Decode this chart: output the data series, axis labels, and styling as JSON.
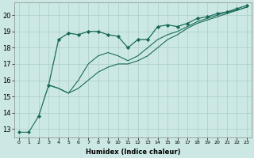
{
  "xlabel": "Humidex (Indice chaleur)",
  "xlim": [
    -0.5,
    23.5
  ],
  "ylim": [
    12.5,
    20.8
  ],
  "yticks": [
    13,
    14,
    15,
    16,
    17,
    18,
    19,
    20
  ],
  "xticks": [
    0,
    1,
    2,
    3,
    4,
    5,
    6,
    7,
    8,
    9,
    10,
    11,
    12,
    13,
    14,
    15,
    16,
    17,
    18,
    19,
    20,
    21,
    22,
    23
  ],
  "bg_color": "#cce8e4",
  "grid_color": "#aaccca",
  "line_color": "#1a6b5a",
  "line1_x": [
    0,
    1,
    2,
    3,
    4,
    5,
    6,
    7,
    8,
    9,
    10,
    11,
    12,
    13,
    14,
    15,
    16,
    17,
    18,
    19,
    20,
    21,
    22,
    23
  ],
  "line1_y": [
    12.8,
    12.8,
    13.8,
    15.7,
    18.5,
    18.9,
    18.8,
    19.0,
    19.0,
    18.8,
    18.7,
    18.0,
    18.5,
    18.5,
    19.3,
    19.4,
    19.3,
    19.5,
    19.8,
    19.9,
    20.1,
    20.2,
    20.4,
    20.6
  ],
  "line2_x": [
    3,
    4,
    5,
    6,
    7,
    8,
    9,
    10,
    11,
    12,
    13,
    14,
    15,
    16,
    17,
    18,
    19,
    20,
    21,
    22,
    23
  ],
  "line2_y": [
    15.7,
    15.5,
    15.2,
    16.0,
    17.0,
    17.5,
    17.7,
    17.5,
    17.2,
    17.5,
    18.0,
    18.5,
    18.8,
    19.0,
    19.3,
    19.6,
    19.8,
    20.0,
    20.2,
    20.3,
    20.5
  ],
  "line3_x": [
    3,
    4,
    5,
    6,
    7,
    8,
    9,
    10,
    11,
    12,
    13,
    14,
    15,
    16,
    17,
    18,
    19,
    20,
    21,
    22,
    23
  ],
  "line3_y": [
    15.7,
    15.5,
    15.2,
    15.5,
    16.0,
    16.5,
    16.8,
    17.0,
    17.0,
    17.2,
    17.5,
    18.0,
    18.5,
    18.8,
    19.2,
    19.5,
    19.7,
    19.9,
    20.1,
    20.3,
    20.5
  ],
  "line4_x": [
    2,
    3,
    4,
    5,
    6,
    7,
    8,
    9,
    10,
    11,
    12,
    13,
    14,
    15,
    16,
    17,
    18,
    19,
    20,
    21,
    22,
    23
  ],
  "line4_y": [
    13.8,
    15.7,
    18.5,
    18.9,
    18.8,
    19.0,
    19.0,
    18.8,
    18.7,
    18.0,
    18.5,
    18.5,
    19.3,
    19.4,
    19.3,
    19.5,
    19.8,
    19.9,
    20.1,
    20.2,
    20.4,
    20.6
  ],
  "line1_style": "-",
  "line2_style": "-",
  "line3_style": "-",
  "line4_style": ":"
}
